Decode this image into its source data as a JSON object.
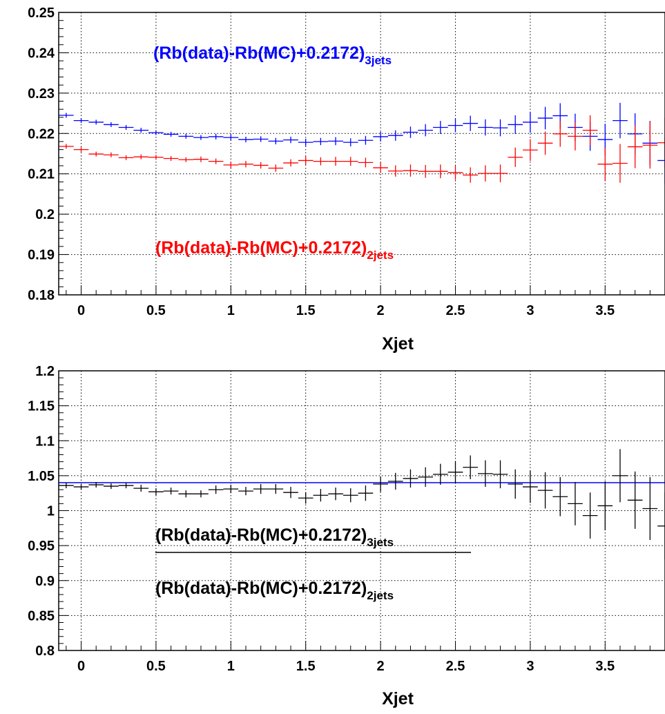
{
  "chart_data": [
    {
      "type": "scatter",
      "xlabel": "Xjet",
      "ylabel": "",
      "xlim": [
        -0.15,
        3.9
      ],
      "ylim": [
        0.18,
        0.25
      ],
      "grid": true,
      "x_ticks": [
        "0",
        "0.5",
        "1",
        "1.5",
        "2",
        "2.5",
        "3",
        "3.5"
      ],
      "y_ticks": [
        "0.18",
        "0.19",
        "0.2",
        "0.21",
        "0.22",
        "0.23",
        "0.24",
        "0.25"
      ],
      "annotations": [
        {
          "main": "(Rb(data)-Rb(MC)+0.2172)",
          "sub": "3jets",
          "color": "#0000ff"
        },
        {
          "main": "(Rb(data)-Rb(MC)+0.2172)",
          "sub": "2jets",
          "color": "#ff0000"
        }
      ],
      "series": [
        {
          "color": "#0000ff",
          "x": [
            -0.1,
            0,
            0.1,
            0.2,
            0.3,
            0.4,
            0.5,
            0.6,
            0.7,
            0.8,
            0.9,
            1.0,
            1.1,
            1.2,
            1.3,
            1.4,
            1.5,
            1.6,
            1.7,
            1.8,
            1.9,
            2.0,
            2.1,
            2.2,
            2.3,
            2.4,
            2.5,
            2.6,
            2.7,
            2.8,
            2.9,
            3.0,
            3.1,
            3.2,
            3.3,
            3.4,
            3.5,
            3.6,
            3.7,
            3.8,
            3.9
          ],
          "y": [
            0.2245,
            0.2232,
            0.2228,
            0.2222,
            0.2215,
            0.2208,
            0.2202,
            0.2198,
            0.2193,
            0.219,
            0.2192,
            0.219,
            0.2185,
            0.2186,
            0.2181,
            0.2184,
            0.2178,
            0.218,
            0.2181,
            0.2178,
            0.2183,
            0.2192,
            0.2195,
            0.2203,
            0.2208,
            0.2215,
            0.222,
            0.2225,
            0.2215,
            0.2214,
            0.2222,
            0.2228,
            0.2238,
            0.2244,
            0.2215,
            0.2193,
            0.2185,
            0.2232,
            0.2199,
            0.2176,
            0.2133
          ],
          "err": [
            0.0006,
            0.0006,
            0.0006,
            0.0006,
            0.0006,
            0.0006,
            0.0006,
            0.0006,
            0.0006,
            0.0006,
            0.0007,
            0.0007,
            0.0007,
            0.0007,
            0.0008,
            0.0008,
            0.0009,
            0.0009,
            0.001,
            0.001,
            0.0011,
            0.0012,
            0.0013,
            0.0014,
            0.0015,
            0.0016,
            0.0017,
            0.0019,
            0.002,
            0.0021,
            0.0023,
            0.0026,
            0.0028,
            0.0031,
            0.0034,
            0.0036,
            0.0039,
            0.0044,
            0.0051,
            0.0055,
            0.0058
          ]
        },
        {
          "color": "#ff0000",
          "x": [
            -0.1,
            0,
            0.1,
            0.2,
            0.3,
            0.4,
            0.5,
            0.6,
            0.7,
            0.8,
            0.9,
            1.0,
            1.1,
            1.2,
            1.3,
            1.4,
            1.5,
            1.6,
            1.7,
            1.8,
            1.9,
            2.0,
            2.1,
            2.2,
            2.3,
            2.4,
            2.5,
            2.6,
            2.7,
            2.8,
            2.9,
            3.0,
            3.1,
            3.2,
            3.3,
            3.4,
            3.5,
            3.6,
            3.7,
            3.8,
            3.9
          ],
          "y": [
            0.2168,
            0.216,
            0.2149,
            0.2147,
            0.214,
            0.2142,
            0.2141,
            0.2138,
            0.2135,
            0.2136,
            0.2131,
            0.2122,
            0.2124,
            0.2121,
            0.2114,
            0.2127,
            0.2133,
            0.2131,
            0.2131,
            0.2131,
            0.2128,
            0.2115,
            0.2107,
            0.2108,
            0.2106,
            0.2106,
            0.2103,
            0.2097,
            0.2101,
            0.2101,
            0.2141,
            0.2159,
            0.2176,
            0.2199,
            0.2193,
            0.2208,
            0.2124,
            0.2126,
            0.2167,
            0.2171,
            0.2177
          ],
          "err": [
            0.0006,
            0.0006,
            0.0006,
            0.0006,
            0.0006,
            0.0006,
            0.0006,
            0.0006,
            0.0006,
            0.0007,
            0.0007,
            0.0008,
            0.0008,
            0.0008,
            0.0009,
            0.0009,
            0.001,
            0.001,
            0.0011,
            0.0011,
            0.0012,
            0.0013,
            0.0014,
            0.0015,
            0.0016,
            0.0017,
            0.0018,
            0.0019,
            0.002,
            0.0022,
            0.0024,
            0.0027,
            0.0029,
            0.0032,
            0.0035,
            0.0037,
            0.0041,
            0.0048,
            0.0053,
            0.0058,
            0.0062
          ]
        }
      ]
    },
    {
      "type": "scatter",
      "xlabel": "Xjet",
      "ylabel": "",
      "xlim": [
        -0.15,
        3.9
      ],
      "ylim": [
        0.8,
        1.2
      ],
      "grid": true,
      "x_ticks": [
        "0",
        "0.5",
        "1",
        "1.5",
        "2",
        "2.5",
        "3",
        "3.5"
      ],
      "y_ticks": [
        "0.8",
        "0.85",
        "0.9",
        "0.95",
        "1",
        "1.05",
        "1.1",
        "1.15",
        "1.2"
      ],
      "reference_line": {
        "y": 1.04,
        "color": "#0000ff"
      },
      "annotations": [
        {
          "main": "(Rb(data)-Rb(MC)+0.2172)",
          "sub": "3jets",
          "color": "#000000"
        },
        {
          "main": "(Rb(data)-Rb(MC)+0.2172)",
          "sub": "2jets",
          "color": "#000000"
        }
      ],
      "series": [
        {
          "color": "#000000",
          "x": [
            -0.1,
            0,
            0.1,
            0.2,
            0.3,
            0.4,
            0.5,
            0.6,
            0.7,
            0.8,
            0.9,
            1.0,
            1.1,
            1.2,
            1.3,
            1.4,
            1.5,
            1.6,
            1.7,
            1.8,
            1.9,
            2.0,
            2.1,
            2.2,
            2.3,
            2.4,
            2.5,
            2.6,
            2.7,
            2.8,
            2.9,
            3.0,
            3.1,
            3.2,
            3.3,
            3.4,
            3.5,
            3.6,
            3.7,
            3.8,
            3.9
          ],
          "y": [
            1.036,
            1.034,
            1.037,
            1.035,
            1.036,
            1.032,
            1.027,
            1.028,
            1.024,
            1.024,
            1.03,
            1.031,
            1.028,
            1.031,
            1.031,
            1.026,
            1.018,
            1.022,
            1.024,
            1.022,
            1.025,
            1.038,
            1.042,
            1.046,
            1.048,
            1.052,
            1.055,
            1.062,
            1.053,
            1.052,
            1.038,
            1.034,
            1.029,
            1.02,
            1.01,
            0.993,
            1.007,
            1.05,
            1.015,
            1.003,
            0.978
          ],
          "err": [
            0.004,
            0.004,
            0.004,
            0.004,
            0.004,
            0.005,
            0.005,
            0.005,
            0.005,
            0.005,
            0.006,
            0.006,
            0.006,
            0.007,
            0.007,
            0.008,
            0.008,
            0.009,
            0.009,
            0.01,
            0.011,
            0.011,
            0.012,
            0.013,
            0.014,
            0.015,
            0.016,
            0.017,
            0.019,
            0.02,
            0.021,
            0.023,
            0.026,
            0.028,
            0.031,
            0.033,
            0.035,
            0.038,
            0.041,
            0.045,
            0.048
          ]
        }
      ]
    }
  ]
}
